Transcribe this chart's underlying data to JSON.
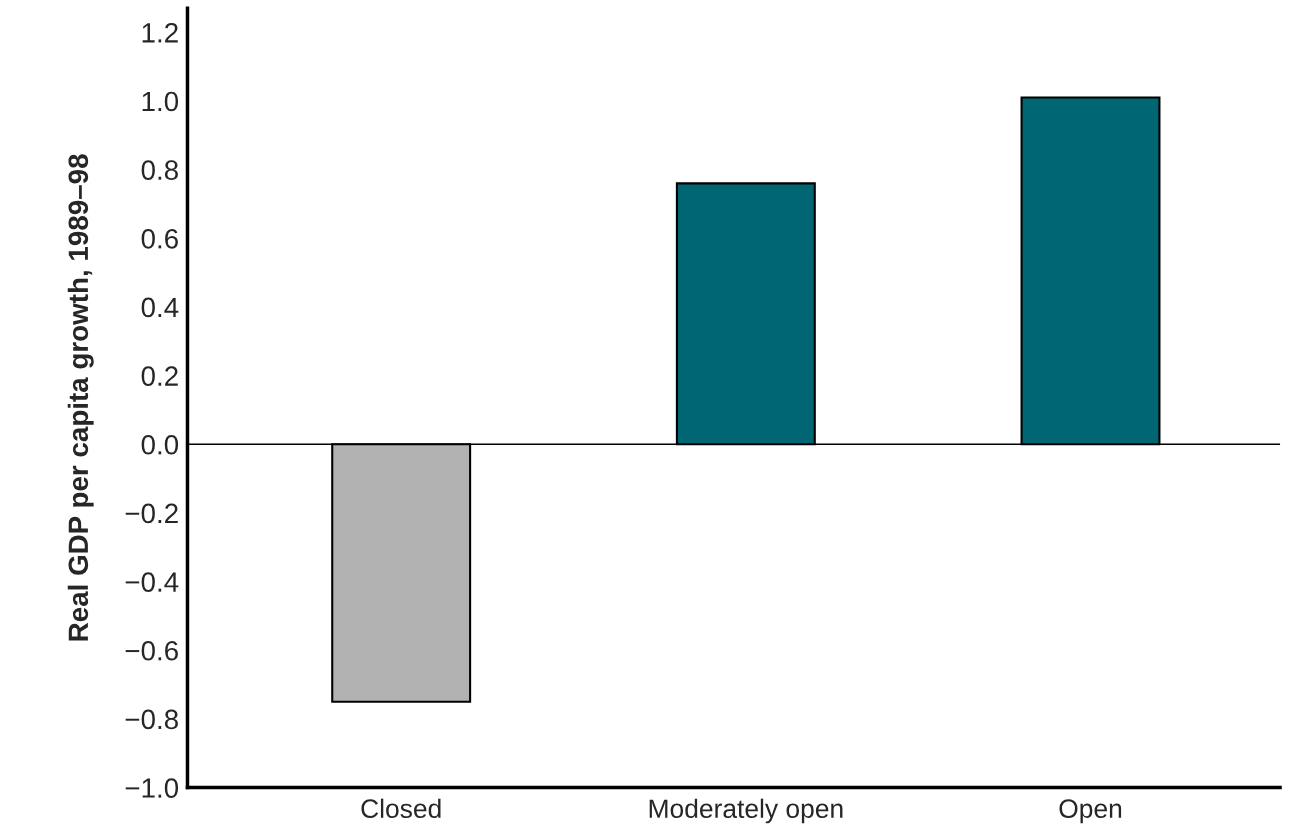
{
  "chart_data": {
    "type": "bar",
    "ylabel": "Real GDP per capita growth, 1989–98",
    "categories": [
      "Closed",
      "Moderately open",
      "Open"
    ],
    "values": [
      -0.75,
      0.76,
      1.01
    ],
    "colors": [
      "#b2b2b2",
      "#006674",
      "#006674"
    ],
    "ylim": [
      -1.0,
      1.27
    ],
    "yticks": [
      {
        "value": -1.0,
        "label": "−1.0"
      },
      {
        "value": -0.8,
        "label": "−0.8"
      },
      {
        "value": -0.6,
        "label": "−0.6"
      },
      {
        "value": -0.4,
        "label": "−0.4"
      },
      {
        "value": -0.2,
        "label": "−0.2"
      },
      {
        "value": 0.0,
        "label": "0.0"
      },
      {
        "value": 0.2,
        "label": "0.2"
      },
      {
        "value": 0.4,
        "label": "0.4"
      },
      {
        "value": 0.6,
        "label": "0.6"
      },
      {
        "value": 0.8,
        "label": "0.8"
      },
      {
        "value": 1.0,
        "label": "1.0"
      },
      {
        "value": 1.2,
        "label": "1.2"
      }
    ],
    "ref_lines": [
      {
        "axis": "y",
        "value": 0,
        "color": "#000000"
      }
    ],
    "grid": false,
    "legend": false
  }
}
